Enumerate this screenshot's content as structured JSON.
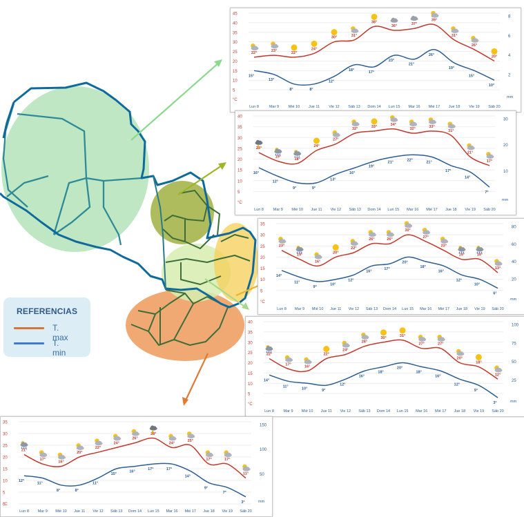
{
  "colors": {
    "tmax_line": "#c0392b",
    "tmin_line": "#2b5d93",
    "legend_max": "#d8733a",
    "legend_min": "#3f7ad0",
    "region_nw": "#a9dfb0",
    "region_north": "#9bab34",
    "region_center": "#d7edb0",
    "region_east": "#f6cf55",
    "region_south": "#ef9a5a",
    "arrow_nw": "#8bd88f",
    "arrow_north": "#9ab629",
    "arrow_east": "#e7b528",
    "arrow_center": "#a6d98a",
    "arrow_south": "#e07a34"
  },
  "legend": {
    "title": "REFERENCIAS",
    "tmax": "T. max",
    "tmin": "T. min"
  },
  "chart_data": [
    {
      "type": "line",
      "region": "northwest",
      "x": [
        "Lun 8",
        "Mar 9",
        "Mié 10",
        "Jue 11",
        "Vie 12",
        "Sáb 13",
        "Dom 14",
        "Lun 15",
        "Mar 16",
        "Mié 17",
        "Jue 18",
        "Vie 19",
        "Sáb 20"
      ],
      "series": [
        {
          "name": "T. max",
          "values": [
            22,
            23,
            22,
            24,
            30,
            31,
            38,
            36,
            37,
            39,
            31,
            26,
            20
          ],
          "labels": [
            "22°",
            "23°",
            "22°",
            "24°",
            "30°",
            "31°",
            "38°",
            "36°",
            "37°",
            "39°",
            "31°",
            "26°",
            "20°"
          ]
        },
        {
          "name": "T. min",
          "values": [
            15,
            13,
            8,
            8,
            12,
            18,
            17,
            23,
            21,
            26,
            19,
            15,
            10
          ],
          "labels": [
            "15°",
            "13°",
            "8°",
            "8°",
            "12°",
            "18°",
            "17°",
            "23°",
            "21°",
            "26°",
            "19°",
            "15°",
            "10°"
          ]
        }
      ],
      "y_ticks": [
        "45",
        "40",
        "35",
        "30",
        "25",
        "20",
        "15",
        "10",
        "5",
        "°C"
      ],
      "ylim": [
        0,
        45
      ],
      "y2_ticks": [
        "8",
        "6",
        "4",
        "2",
        "mm"
      ],
      "icons": [
        "partly-cloudy-icon",
        "partly-cloudy-icon",
        "sun-icon",
        "sun-icon",
        "sun-icon",
        "partly-cloudy-icon",
        "sun-icon",
        "cloudy-icon",
        "cloudy-icon",
        "partly-cloudy-icon",
        "partly-cloudy-icon",
        "partly-cloudy-icon",
        "sun-icon"
      ]
    },
    {
      "type": "line",
      "region": "north",
      "x": [
        "Lun 8",
        "Mar 9",
        "Mié 10",
        "Jue 11",
        "Vie 12",
        "Sáb 13",
        "Dom 14",
        "Lun 15",
        "Mar 16",
        "Mié 17",
        "Jue 18",
        "Vie 19",
        "Sáb 20"
      ],
      "series": [
        {
          "name": "T. max",
          "values": [
            23,
            19,
            18,
            24,
            27,
            32,
            33,
            34,
            32,
            33,
            31,
            21,
            17
          ],
          "labels": [
            "23°",
            "19°",
            "18°",
            "24°",
            "27°",
            "32°",
            "33°",
            "34°",
            "32°",
            "33°",
            "31°",
            "21°",
            "17°"
          ]
        },
        {
          "name": "T. min",
          "values": [
            16,
            12,
            9,
            9,
            13,
            16,
            19,
            21,
            22,
            21,
            17,
            14,
            7
          ],
          "labels": [
            "16°",
            "12°",
            "9°",
            "9°",
            "13°",
            "16°",
            "19°",
            "21°",
            "22°",
            "21°",
            "17°",
            "14°",
            "7°"
          ]
        }
      ],
      "y_ticks": [
        "40",
        "35",
        "30",
        "25",
        "20",
        "15",
        "10",
        "5",
        "°C"
      ],
      "ylim": [
        0,
        40
      ],
      "y2_ticks": [
        "30",
        "20",
        "10",
        "mm"
      ],
      "icons": [
        "storm-icon",
        "rain-icon",
        "rain-icon",
        "sun-icon",
        "partly-cloudy-icon",
        "partly-cloudy-icon",
        "sun-icon",
        "partly-cloudy-icon",
        "partly-cloudy-icon",
        "partly-cloudy-icon",
        "partly-cloudy-icon",
        "partly-cloudy-icon",
        "partly-cloudy-icon"
      ]
    },
    {
      "type": "line",
      "region": "east",
      "x": [
        "Lun 8",
        "Mar 9",
        "Mié 10",
        "Jue 11",
        "Vie 12",
        "Sáb 13",
        "Dom 14",
        "Lun 15",
        "Mar 16",
        "Mié 17",
        "Jue 18",
        "Vie 19",
        "Sáb 20"
      ],
      "series": [
        {
          "name": "T. max",
          "values": [
            23,
            19,
            16,
            20,
            22,
            26,
            26,
            30,
            27,
            23,
            19,
            19,
            13
          ],
          "labels": [
            "23°",
            "19°",
            "16°",
            "20°",
            "22°",
            "26°",
            "26°",
            "30°",
            "27°",
            "23°",
            "19°",
            "19°",
            "13°"
          ]
        },
        {
          "name": "T. min",
          "values": [
            14,
            11,
            9,
            10,
            12,
            16,
            17,
            20,
            18,
            16,
            12,
            10,
            6
          ],
          "labels": [
            "14°",
            "11°",
            "9°",
            "10°",
            "12°",
            "16°",
            "17°",
            "20°",
            "18°",
            "16°",
            "12°",
            "10°",
            "6°"
          ]
        }
      ],
      "y_ticks": [
        "35",
        "30",
        "25",
        "20",
        "15",
        "10",
        "5",
        "°C"
      ],
      "ylim": [
        0,
        35
      ],
      "y2_ticks": [
        "80",
        "60",
        "40",
        "20",
        "mm"
      ],
      "icons": [
        "partly-cloudy-icon",
        "rain-icon",
        "partly-cloudy-icon",
        "sun-icon",
        "partly-cloudy-icon",
        "partly-cloudy-icon",
        "partly-cloudy-icon",
        "partly-cloudy-icon",
        "partly-cloudy-icon",
        "partly-cloudy-icon",
        "rain-icon",
        "rain-icon",
        "partly-cloudy-icon"
      ]
    },
    {
      "type": "line",
      "region": "center",
      "x": [
        "Lun 8",
        "Mar 9",
        "Mié 10",
        "Jue 11",
        "Vie 12",
        "Sáb 13",
        "Dom 14",
        "Lun 15",
        "Mar 16",
        "Mié 17",
        "Jue 18",
        "Vie 19",
        "Sáb 20"
      ],
      "series": [
        {
          "name": "T. max",
          "values": [
            22,
            17,
            16,
            22,
            24,
            28,
            30,
            31,
            27,
            27,
            20,
            18,
            12
          ],
          "labels": [
            "22°",
            "17°",
            "16°",
            "22°",
            "24°",
            "28°",
            "30°",
            "31°",
            "27°",
            "27°",
            "20°",
            "18°",
            "12°"
          ]
        },
        {
          "name": "T. min",
          "values": [
            14,
            11,
            10,
            9,
            12,
            16,
            18,
            20,
            18,
            16,
            12,
            9,
            3
          ],
          "labels": [
            "14°",
            "11°",
            "10°",
            "9°",
            "12°",
            "16°",
            "18°",
            "20°",
            "18°",
            "16°",
            "12°",
            "9°",
            "3°"
          ]
        }
      ],
      "y_ticks": [
        "40",
        "35",
        "30",
        "25",
        "20",
        "15",
        "10",
        "5",
        "°C"
      ],
      "ylim": [
        0,
        40
      ],
      "y2_ticks": [
        "100",
        "75",
        "50",
        "25",
        "mm"
      ],
      "icons": [
        "rain-icon",
        "partly-cloudy-icon",
        "partly-cloudy-icon",
        "sun-icon",
        "partly-cloudy-icon",
        "partly-cloudy-icon",
        "sun-icon",
        "sun-icon",
        "partly-cloudy-icon",
        "partly-cloudy-icon",
        "partly-cloudy-icon",
        "sun-icon",
        "partly-cloudy-icon"
      ]
    },
    {
      "type": "line",
      "region": "south",
      "x": [
        "Lun 8",
        "Mar 9",
        "Mié 10",
        "Jue 11",
        "Vie 12",
        "Sáb 13",
        "Dom 14",
        "Lun 15",
        "Mar 16",
        "Mié 17",
        "Jue 18",
        "Vie 19",
        "Sáb 20"
      ],
      "series": [
        {
          "name": "T. max",
          "values": [
            21,
            17,
            16,
            20,
            22,
            24,
            26,
            28,
            24,
            25,
            17,
            17,
            11
          ],
          "labels": [
            "21°",
            "17°",
            "16°",
            "20°",
            "22°",
            "24°",
            "26°",
            "28°",
            "24°",
            "25°",
            "17°",
            "17°",
            "11°"
          ]
        },
        {
          "name": "T. min",
          "values": [
            12,
            11,
            8,
            8,
            11,
            15,
            16,
            17,
            17,
            14,
            9,
            7,
            3
          ],
          "labels": [
            "12°",
            "11°",
            "8°",
            "8°",
            "11°",
            "15°",
            "16°",
            "17°",
            "17°",
            "14°",
            "9°",
            "7°",
            "3°"
          ]
        }
      ],
      "y_ticks": [
        "35",
        "30",
        "25",
        "20",
        "15",
        "10",
        "5",
        "0",
        "°C"
      ],
      "ylim": [
        0,
        35
      ],
      "y2_ticks": [
        "150",
        "100",
        "50",
        "mm"
      ],
      "icons": [
        "rain-icon",
        "partly-cloudy-icon",
        "partly-cloudy-icon",
        "partly-cloudy-icon",
        "partly-cloudy-icon",
        "partly-cloudy-icon",
        "partly-cloudy-icon",
        "storm-icon",
        "partly-cloudy-icon",
        "partly-cloudy-icon",
        "partly-cloudy-icon",
        "partly-cloudy-icon",
        "partly-cloudy-icon"
      ]
    }
  ]
}
